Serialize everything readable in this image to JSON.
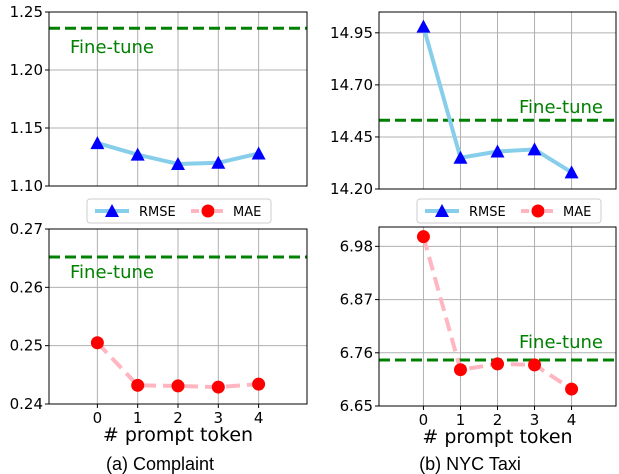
{
  "captions": [
    "(a) Complaint",
    "(b) NYC Taxi"
  ],
  "colors": {
    "rmse": "#87ceeb",
    "rmse_marker": "#0000ff",
    "mae": "#ffb6c1",
    "mae_marker": "#ff0000",
    "finetune": "#008000",
    "grid": "#b0b0b0"
  },
  "legends": [
    {
      "entries": [
        "RMSE",
        "MAE"
      ]
    },
    {
      "entries": [
        "RMSE",
        "MAE"
      ]
    }
  ],
  "chart_data": [
    {
      "type": "line",
      "xlabel": "",
      "ylabel": "",
      "x": [
        0,
        1,
        2,
        3,
        4
      ],
      "xlim": [
        -1.2,
        5.2
      ],
      "ylim": [
        1.1,
        1.25
      ],
      "yticks": [
        "1.10",
        "1.15",
        "1.20",
        "1.25"
      ],
      "xticks": [],
      "series": [
        {
          "name": "RMSE",
          "values": [
            1.137,
            1.127,
            1.119,
            1.12,
            1.128
          ],
          "style": "solid",
          "marker": "triangle"
        }
      ],
      "reference_line": {
        "label": "Fine-tune",
        "value": 1.236
      },
      "grid": true
    },
    {
      "type": "line",
      "xlabel": "",
      "ylabel": "",
      "x": [
        0,
        1,
        2,
        3,
        4
      ],
      "xlim": [
        -1.2,
        5.2
      ],
      "ylim": [
        14.2,
        15.05
      ],
      "yticks": [
        "14.20",
        "14.45",
        "14.70",
        "14.95"
      ],
      "xticks": [],
      "series": [
        {
          "name": "RMSE",
          "values": [
            14.98,
            14.35,
            14.38,
            14.39,
            14.28
          ],
          "style": "solid",
          "marker": "triangle"
        }
      ],
      "reference_line": {
        "label": "Fine-tune",
        "value": 14.53
      },
      "grid": true
    },
    {
      "type": "line",
      "xlabel": "# prompt token",
      "ylabel": "",
      "x": [
        0,
        1,
        2,
        3,
        4
      ],
      "xlim": [
        -1.2,
        5.2
      ],
      "ylim": [
        0.24,
        0.27
      ],
      "yticks": [
        "0.24",
        "0.25",
        "0.26",
        "0.27"
      ],
      "xticks": [
        "0",
        "1",
        "2",
        "3",
        "4"
      ],
      "series": [
        {
          "name": "MAE",
          "values": [
            0.2505,
            0.2432,
            0.2431,
            0.2429,
            0.2434
          ],
          "style": "dashed",
          "marker": "circle"
        }
      ],
      "reference_line": {
        "label": "Fine-tune",
        "value": 0.2652
      },
      "grid": true
    },
    {
      "type": "line",
      "xlabel": "# prompt token",
      "ylabel": "",
      "x": [
        0,
        1,
        2,
        3,
        4
      ],
      "xlim": [
        -1.2,
        5.2
      ],
      "ylim": [
        6.65,
        7.02
      ],
      "yticks": [
        "6.65",
        "6.76",
        "6.87",
        "6.98"
      ],
      "xticks": [
        "0",
        "1",
        "2",
        "3",
        "4"
      ],
      "series": [
        {
          "name": "MAE",
          "values": [
            7.0,
            6.725,
            6.737,
            6.735,
            6.685
          ],
          "style": "dashed",
          "marker": "circle"
        }
      ],
      "reference_line": {
        "label": "Fine-tune",
        "value": 6.745
      },
      "grid": true
    }
  ]
}
